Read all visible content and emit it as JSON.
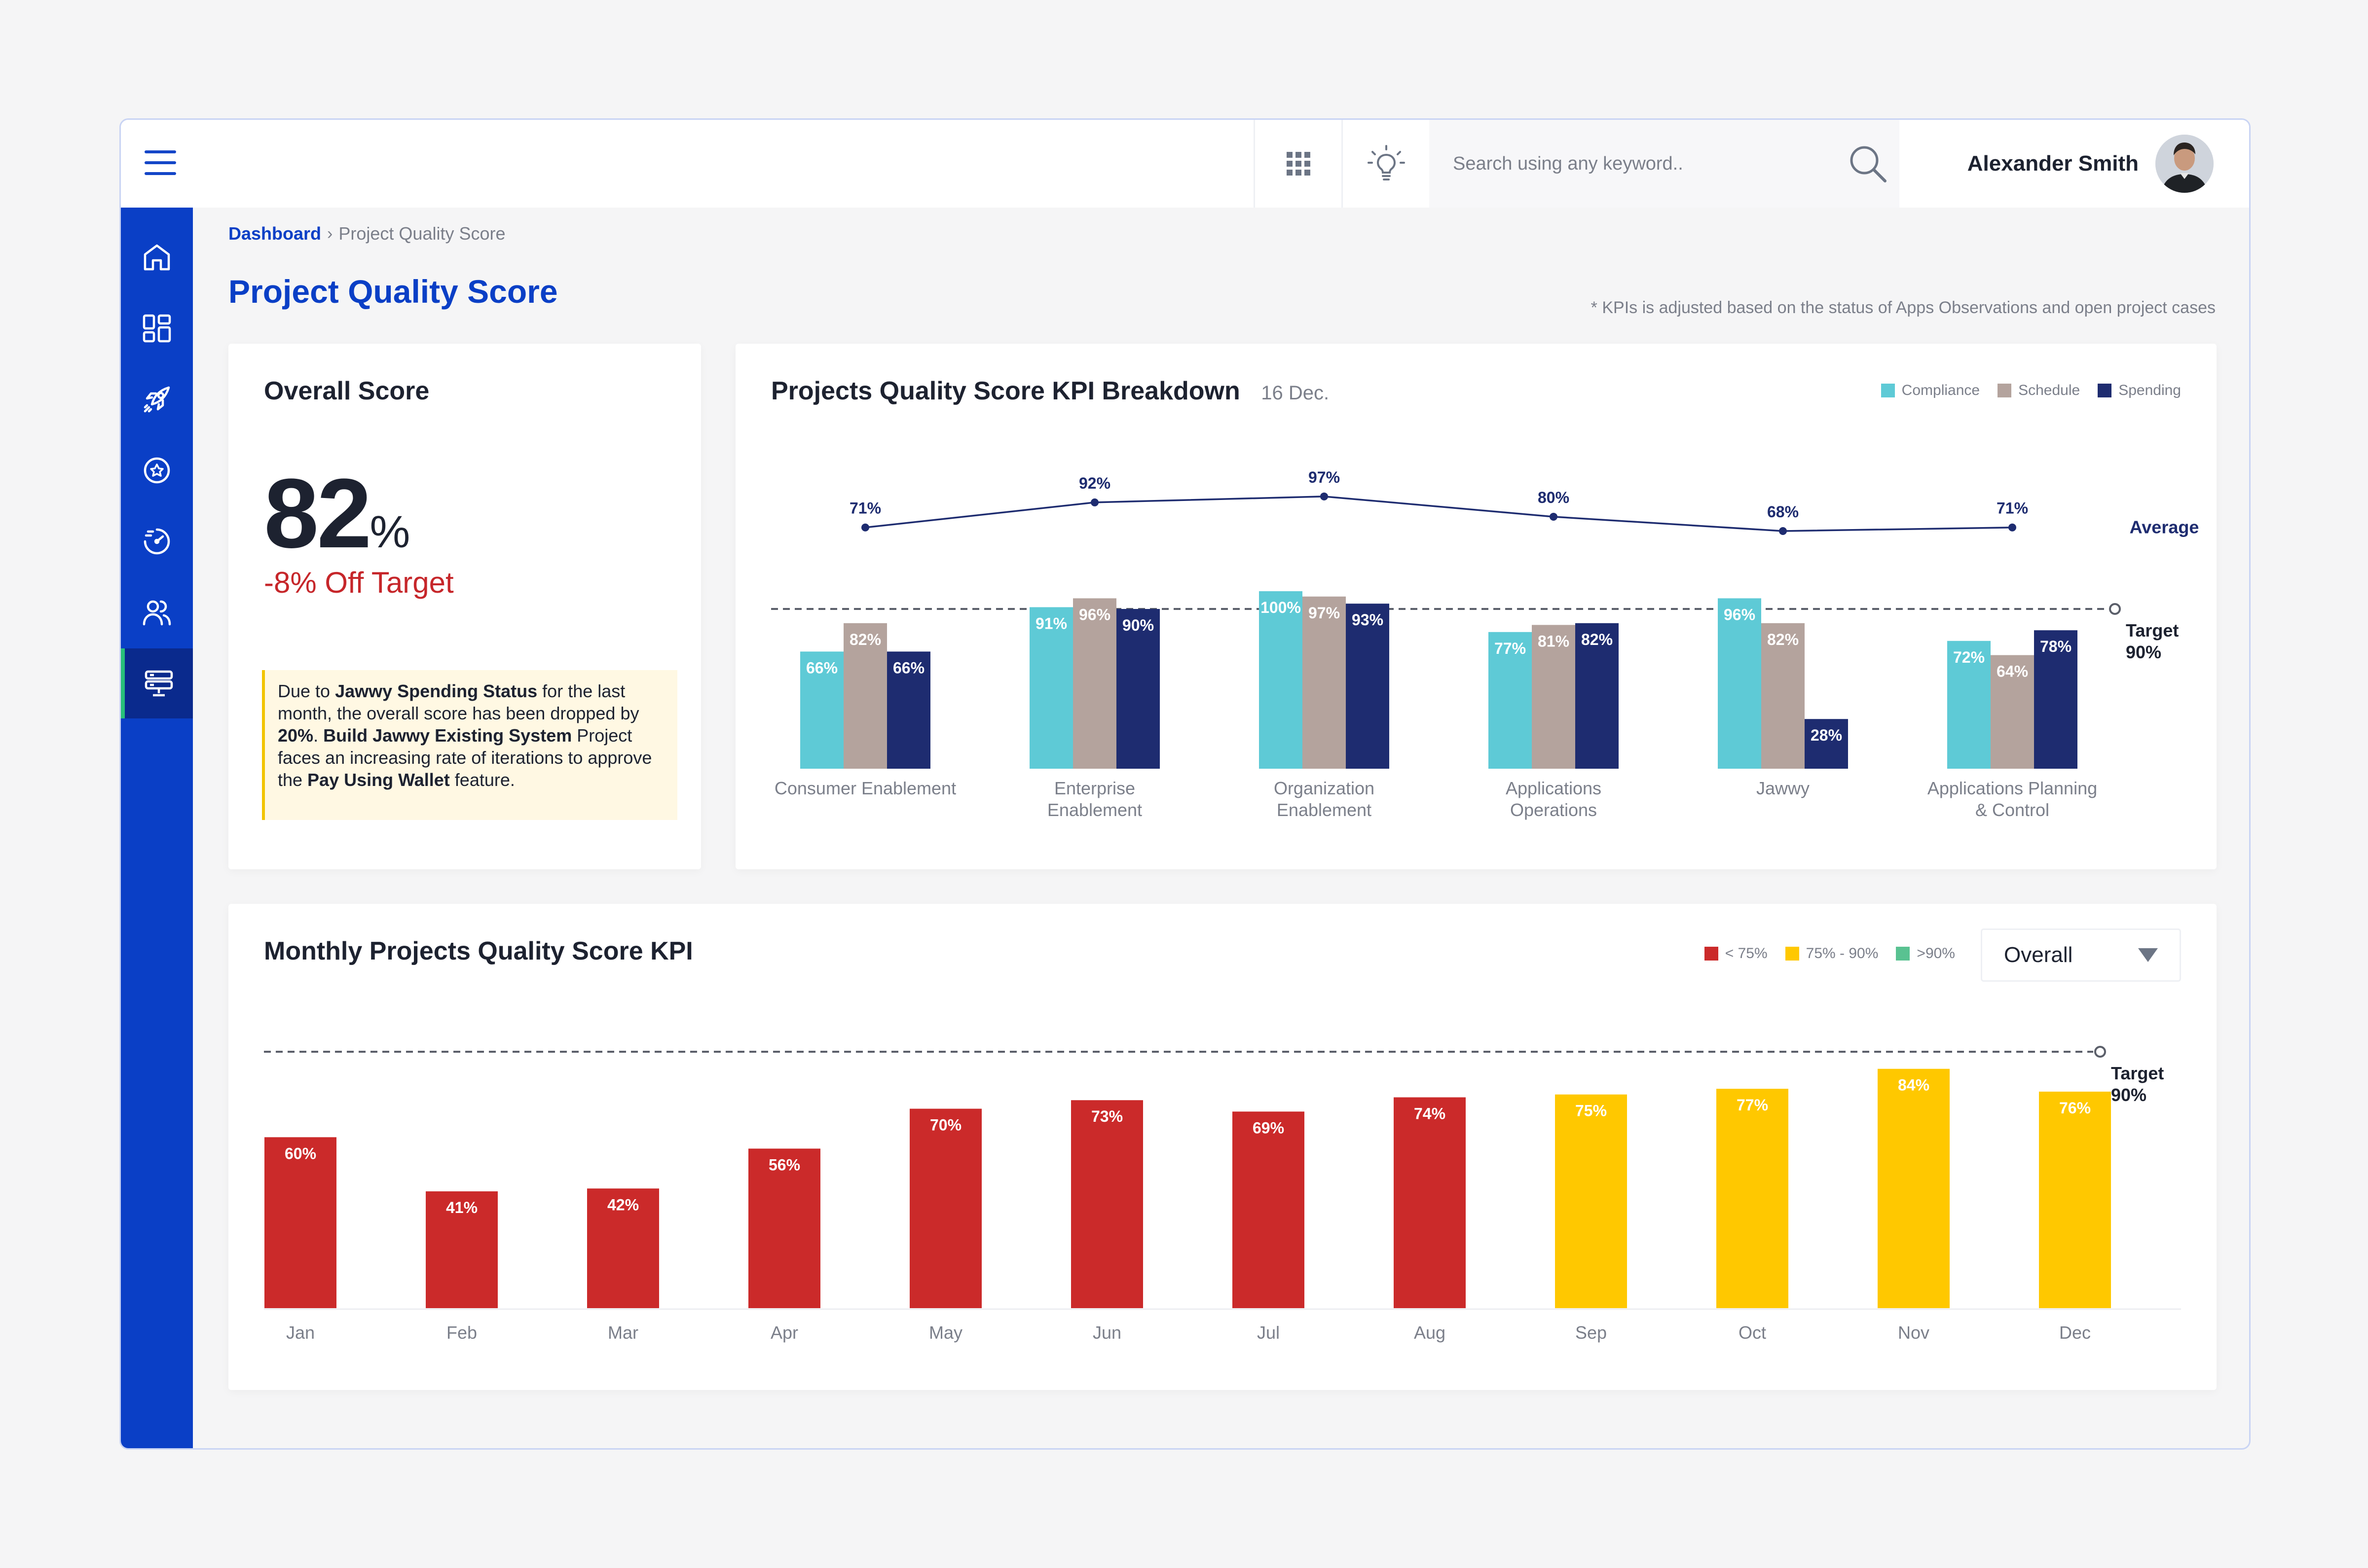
{
  "user": {
    "name": "Alexander Smith"
  },
  "search": {
    "placeholder": "Search using any keyword.."
  },
  "breadcrumb": {
    "parent": "Dashboard",
    "current": "Project Quality Score"
  },
  "page": {
    "title": "Project Quality Score",
    "note": "* KPIs is adjusted based on the status of Apps Observations and open project cases"
  },
  "overall": {
    "title": "Overall Score",
    "score": "82",
    "score_unit": "%",
    "off_target": "-8% Off Target",
    "message": {
      "p1": "Due to ",
      "b1": "Jawwy Spending Status",
      "p2": " for the last month, the overall score has been dropped by ",
      "b2": "20%",
      "p3": ". ",
      "b3": "Build Jawwy Existing System",
      "p4": " Project faces an increasing rate of iterations to approve the ",
      "b4": "Pay Using Wallet",
      "p5": " feature."
    }
  },
  "breakdown": {
    "title": "Projects Quality Score KPI Breakdown",
    "date": "16 Dec.",
    "legend": [
      "Compliance",
      "Schedule",
      "Spending"
    ]
  },
  "monthly": {
    "title": "Monthly Projects Quality Score KPI",
    "legend": [
      "< 75%",
      "75% - 90%",
      ">90%"
    ],
    "filter": "Overall"
  },
  "colors": {
    "compliance": "#5ecad6",
    "schedule": "#b4a39d",
    "spending": "#1e2c70",
    "low": "#cb2a2a",
    "mid": "#ffc800",
    "high": "#59c291",
    "accent": "#0a3fc6"
  },
  "chart_data": [
    {
      "type": "bar",
      "categories": [
        "Consumer Enablement",
        "Enterprise\nEnablement",
        "Organization\nEnablement",
        "Applications\nOperations",
        "Jawwy",
        "Applications Planning\n& Control"
      ],
      "series": [
        {
          "name": "Compliance",
          "values": [
            66,
            91,
            100,
            77,
            96,
            72
          ]
        },
        {
          "name": "Schedule",
          "values": [
            82,
            96,
            97,
            81,
            82,
            64
          ]
        },
        {
          "name": "Spending",
          "values": [
            66,
            90,
            93,
            82,
            28,
            78
          ]
        }
      ],
      "average": {
        "label": "Average",
        "values": [
          71,
          92,
          97,
          80,
          68,
          71
        ]
      },
      "target": {
        "label": "Target",
        "value": 90,
        "value_label": "90%"
      },
      "unit": "%",
      "ylim": [
        0,
        100
      ]
    },
    {
      "type": "bar",
      "categories": [
        "Jan",
        "Feb",
        "Mar",
        "Apr",
        "May",
        "Jun",
        "Jul",
        "Aug",
        "Sep",
        "Oct",
        "Nov",
        "Dec"
      ],
      "values": [
        60,
        41,
        42,
        56,
        70,
        73,
        69,
        74,
        75,
        77,
        84,
        76
      ],
      "target": {
        "label": "Target",
        "value": 90,
        "value_label": "90%"
      },
      "unit": "%",
      "ylim": [
        0,
        90
      ]
    }
  ]
}
